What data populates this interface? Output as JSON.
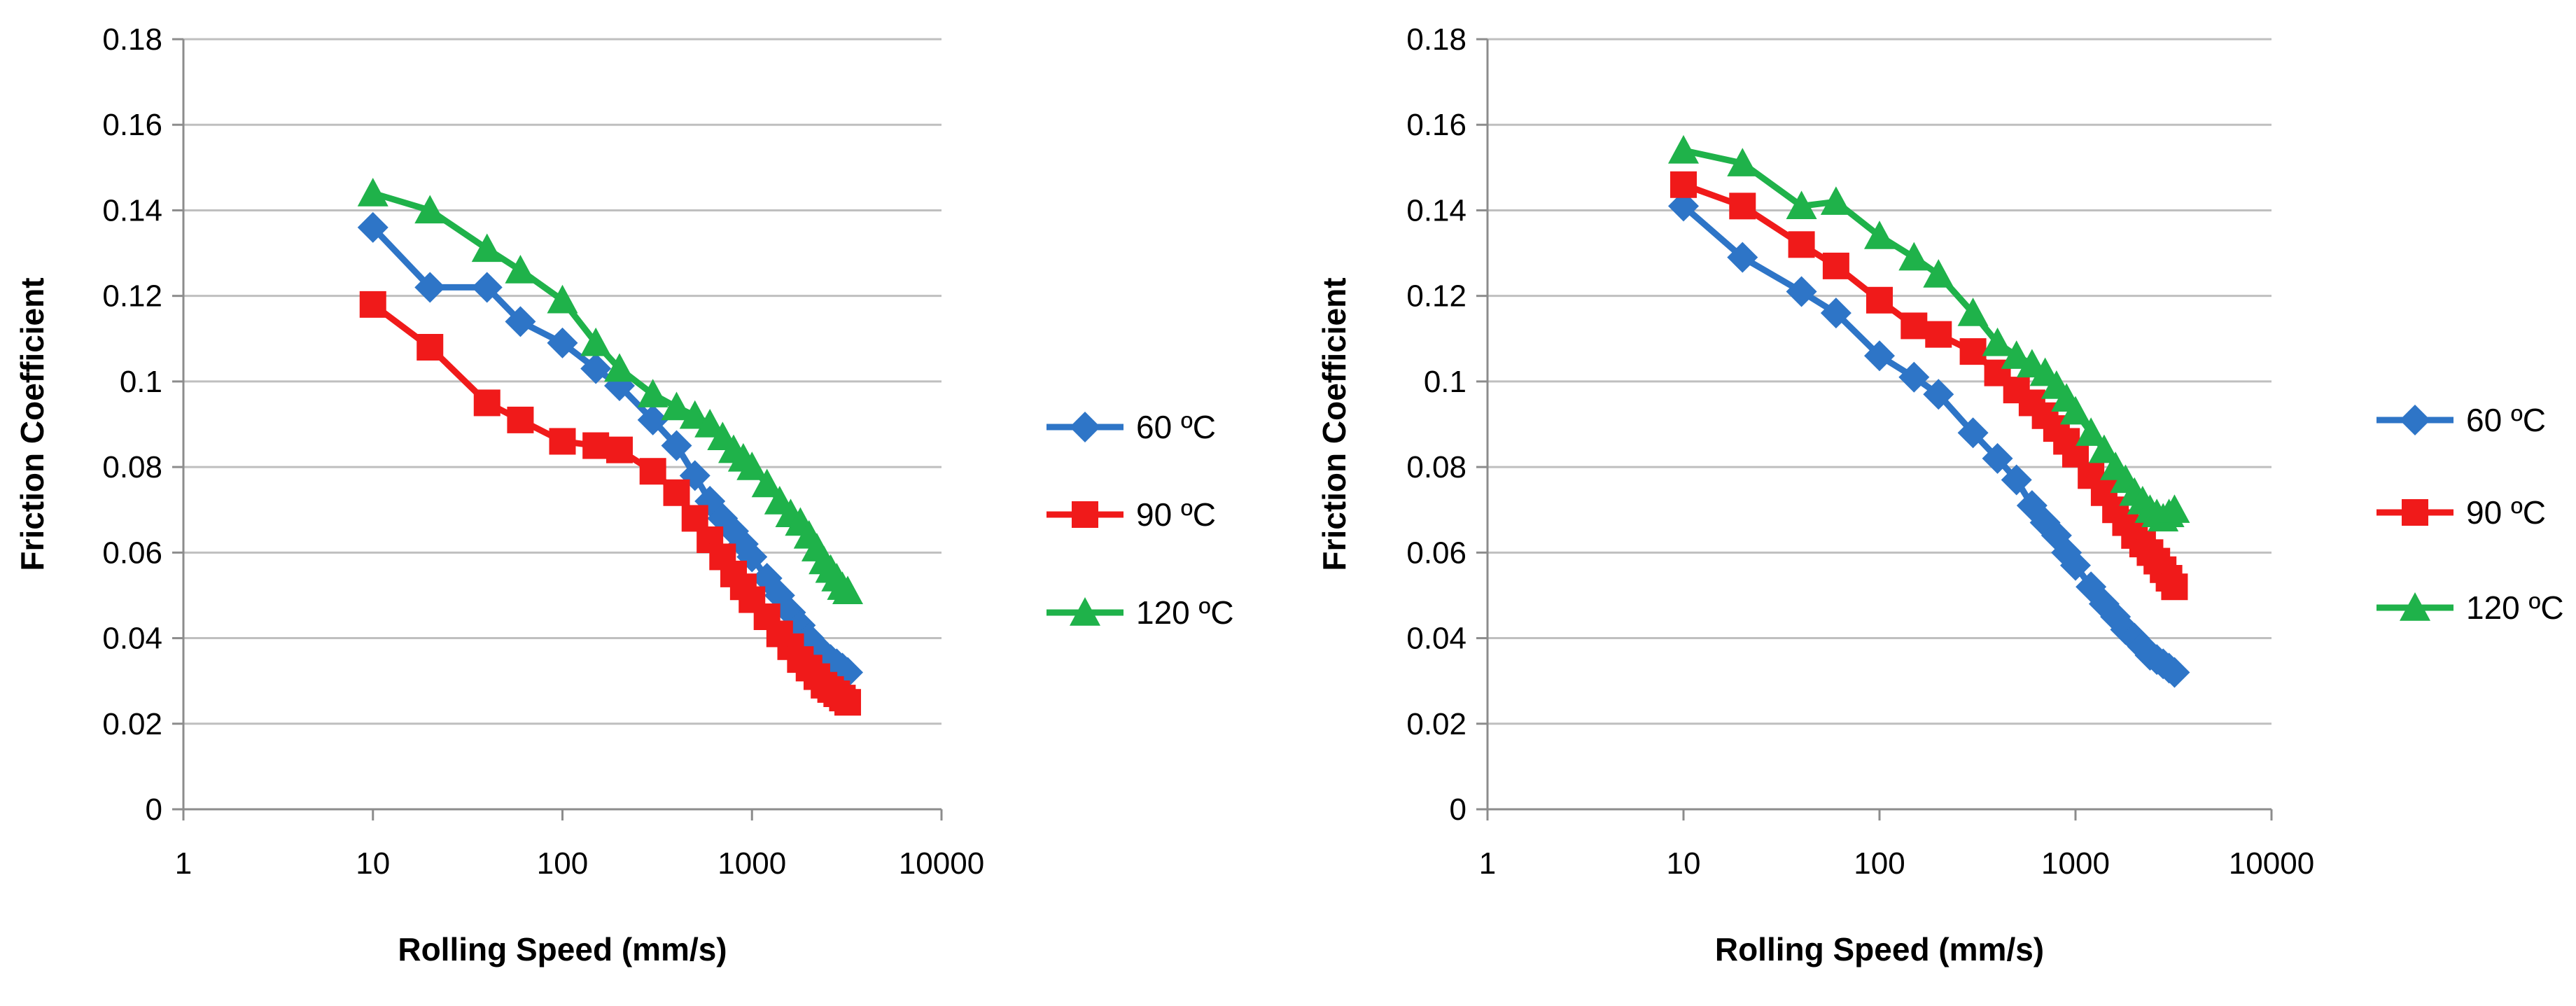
{
  "chart_data": [
    {
      "type": "line",
      "title": "",
      "xlabel": "Rolling Speed (mm/s)",
      "ylabel": "Friction Coefficient",
      "xscale": "log",
      "xlim": [
        1,
        10000
      ],
      "ylim": [
        0,
        0.18
      ],
      "xticks": [
        1,
        10,
        100,
        1000,
        10000
      ],
      "xtick_labels": [
        "1",
        "10",
        "100",
        "1000",
        "10000"
      ],
      "yticks": [
        0,
        0.02,
        0.04,
        0.06,
        0.08,
        0.1,
        0.12,
        0.14,
        0.16,
        0.18
      ],
      "ytick_labels": [
        "0",
        "0.02",
        "0.04",
        "0.06",
        "0.08",
        "0.1",
        "0.12",
        "0.14",
        "0.16",
        "0.18"
      ],
      "grid": "horizontal",
      "legend_position": "right",
      "series": [
        {
          "name": "60 ºC",
          "color": "#2e75c7",
          "marker": "diamond",
          "x": [
            10,
            20,
            40,
            60,
            100,
            150,
            200,
            300,
            400,
            500,
            600,
            700,
            800,
            900,
            1000,
            1200,
            1400,
            1600,
            1800,
            2000,
            2200,
            2400,
            2600,
            2800,
            3000,
            3200
          ],
          "y": [
            0.136,
            0.122,
            0.122,
            0.114,
            0.109,
            0.103,
            0.099,
            0.091,
            0.085,
            0.078,
            0.072,
            0.068,
            0.065,
            0.062,
            0.059,
            0.054,
            0.05,
            0.046,
            0.043,
            0.04,
            0.038,
            0.036,
            0.035,
            0.034,
            0.033,
            0.032
          ]
        },
        {
          "name": "90 ºC",
          "color": "#f01a1a",
          "marker": "square",
          "x": [
            10,
            20,
            40,
            60,
            100,
            150,
            200,
            300,
            400,
            500,
            600,
            700,
            800,
            900,
            1000,
            1200,
            1400,
            1600,
            1800,
            2000,
            2200,
            2400,
            2600,
            2800,
            3000,
            3200
          ],
          "y": [
            0.118,
            0.108,
            0.095,
            0.091,
            0.086,
            0.085,
            0.084,
            0.079,
            0.074,
            0.068,
            0.063,
            0.059,
            0.055,
            0.052,
            0.049,
            0.045,
            0.041,
            0.038,
            0.035,
            0.033,
            0.031,
            0.029,
            0.028,
            0.027,
            0.026,
            0.025
          ]
        },
        {
          "name": "120 ºC",
          "color": "#1fb24a",
          "marker": "triangle",
          "x": [
            10,
            20,
            40,
            60,
            100,
            150,
            200,
            300,
            400,
            500,
            600,
            700,
            800,
            900,
            1000,
            1200,
            1400,
            1600,
            1800,
            2000,
            2200,
            2400,
            2600,
            2800,
            3000,
            3200
          ],
          "y": [
            0.144,
            0.14,
            0.131,
            0.126,
            0.119,
            0.109,
            0.103,
            0.097,
            0.094,
            0.092,
            0.09,
            0.087,
            0.084,
            0.082,
            0.08,
            0.076,
            0.072,
            0.069,
            0.067,
            0.064,
            0.061,
            0.058,
            0.056,
            0.054,
            0.052,
            0.051
          ]
        }
      ]
    },
    {
      "type": "line",
      "title": "",
      "xlabel": "Rolling Speed (mm/s)",
      "ylabel": "Friction Coefficient",
      "xscale": "log",
      "xlim": [
        1,
        10000
      ],
      "ylim": [
        0,
        0.18
      ],
      "xticks": [
        1,
        10,
        100,
        1000,
        10000
      ],
      "xtick_labels": [
        "1",
        "10",
        "100",
        "1000",
        "10000"
      ],
      "yticks": [
        0,
        0.02,
        0.04,
        0.06,
        0.08,
        0.1,
        0.12,
        0.14,
        0.16,
        0.18
      ],
      "ytick_labels": [
        "0",
        "0.02",
        "0.04",
        "0.06",
        "0.08",
        "0.1",
        "0.12",
        "0.14",
        "0.16",
        "0.18"
      ],
      "grid": "horizontal",
      "legend_position": "right",
      "series": [
        {
          "name": "60 ºC",
          "color": "#2e75c7",
          "marker": "diamond",
          "x": [
            10,
            20,
            40,
            60,
            100,
            150,
            200,
            300,
            400,
            500,
            600,
            700,
            800,
            900,
            1000,
            1200,
            1400,
            1600,
            1800,
            2000,
            2200,
            2400,
            2600,
            2800,
            3000,
            3200
          ],
          "y": [
            0.141,
            0.129,
            0.121,
            0.116,
            0.106,
            0.101,
            0.097,
            0.088,
            0.082,
            0.077,
            0.071,
            0.067,
            0.064,
            0.06,
            0.057,
            0.052,
            0.048,
            0.045,
            0.042,
            0.04,
            0.038,
            0.036,
            0.035,
            0.034,
            0.033,
            0.032
          ]
        },
        {
          "name": "90 ºC",
          "color": "#f01a1a",
          "marker": "square",
          "x": [
            10,
            20,
            40,
            60,
            100,
            150,
            200,
            300,
            400,
            500,
            600,
            700,
            800,
            900,
            1000,
            1200,
            1400,
            1600,
            1800,
            2000,
            2200,
            2400,
            2600,
            2800,
            3000,
            3200
          ],
          "y": [
            0.146,
            0.141,
            0.132,
            0.127,
            0.119,
            0.113,
            0.111,
            0.107,
            0.102,
            0.098,
            0.095,
            0.092,
            0.089,
            0.086,
            0.083,
            0.078,
            0.074,
            0.07,
            0.067,
            0.064,
            0.062,
            0.06,
            0.058,
            0.056,
            0.054,
            0.052
          ]
        },
        {
          "name": "120 ºC",
          "color": "#1fb24a",
          "marker": "triangle",
          "x": [
            10,
            20,
            40,
            60,
            100,
            150,
            200,
            300,
            400,
            500,
            600,
            700,
            800,
            900,
            1000,
            1200,
            1400,
            1600,
            1800,
            2000,
            2200,
            2400,
            2600,
            2800,
            3000,
            3200
          ],
          "y": [
            0.154,
            0.151,
            0.141,
            0.142,
            0.134,
            0.129,
            0.125,
            0.116,
            0.109,
            0.106,
            0.104,
            0.102,
            0.099,
            0.096,
            0.093,
            0.088,
            0.084,
            0.08,
            0.077,
            0.074,
            0.072,
            0.07,
            0.069,
            0.068,
            0.069,
            0.07
          ]
        }
      ]
    }
  ]
}
